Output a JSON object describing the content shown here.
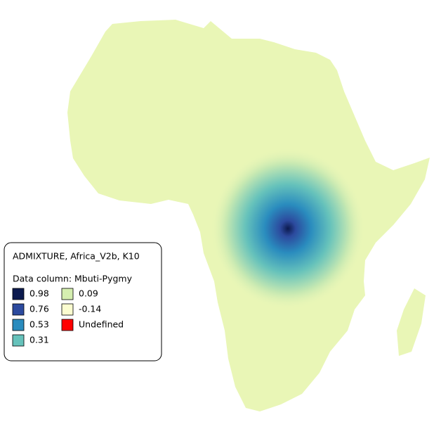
{
  "legend": {
    "title": "ADMIXTURE, Africa_V2b, K10",
    "subtitle": "Data column: Mbuti-Pygmy",
    "items": [
      {
        "label": "0.98",
        "color": "#0c1a4e"
      },
      {
        "label": "0.76",
        "color": "#2c4a9e"
      },
      {
        "label": "0.53",
        "color": "#2a8cbe"
      },
      {
        "label": "0.31",
        "color": "#66c2bb"
      },
      {
        "label": "0.09",
        "color": "#d5efb0"
      },
      {
        "label": "-0.14",
        "color": "#fbfdd0"
      },
      {
        "label": "Undefined",
        "color": "#ff0000"
      }
    ]
  }
}
